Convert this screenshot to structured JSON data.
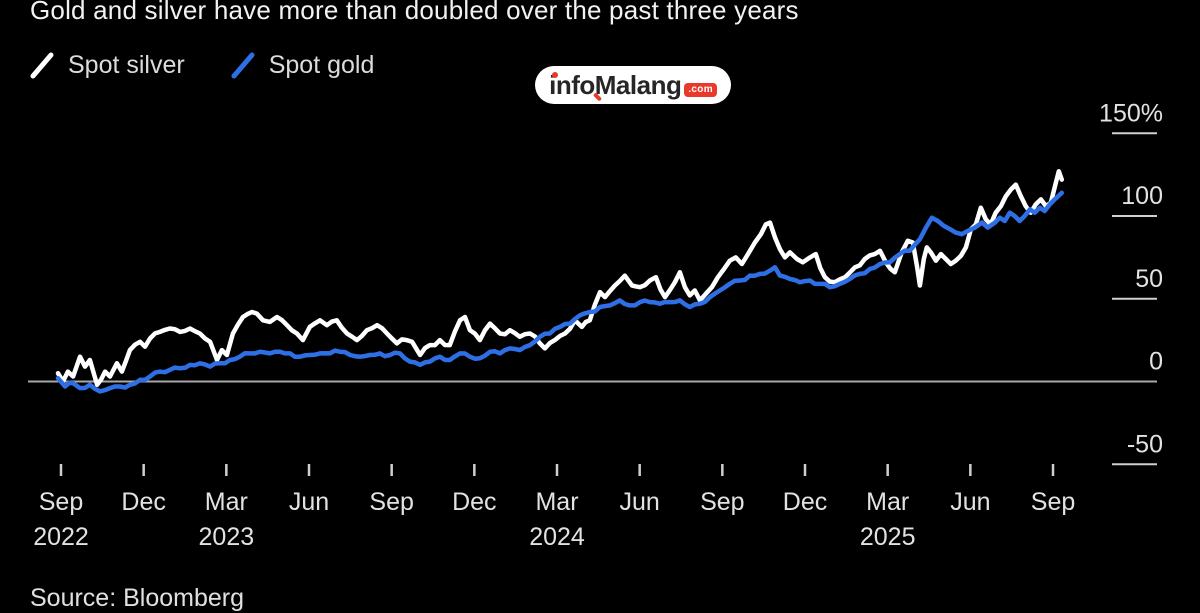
{
  "title": "Gold and silver have more than doubled over the past three years",
  "legend": [
    {
      "label": "Spot silver",
      "color": "#ffffff"
    },
    {
      "label": "Spot gold",
      "color": "#2f6fe6"
    }
  ],
  "watermark": {
    "prefix": "info",
    "suffix": "Malang",
    "tld": ".com"
  },
  "source": "Source: Bloomberg",
  "colors": {
    "background": "#000000",
    "title_text": "#f2f2f2",
    "axis_text": "#e2e2e2",
    "axis_line": "#a8a8a8",
    "tick": "#cfcfcf",
    "silver": "#ffffff",
    "gold": "#2f6fe6",
    "watermark_red": "#e8392a",
    "watermark_text": "#262626"
  },
  "chart_data": {
    "type": "line",
    "unit": "%",
    "title": "Gold and silver have more than doubled over the past three years",
    "x_axis": {
      "tick_labels": [
        "Sep",
        "Dec",
        "Mar",
        "Jun",
        "Sep",
        "Dec",
        "Mar",
        "Jun",
        "Sep",
        "Dec",
        "Mar",
        "Jun",
        "Sep"
      ],
      "year_labels": [
        {
          "tick_index": 0,
          "label": "2022"
        },
        {
          "tick_index": 2,
          "label": "2023"
        },
        {
          "tick_index": 6,
          "label": "2024"
        },
        {
          "tick_index": 10,
          "label": "2025"
        }
      ],
      "months_per_tick": 3,
      "months_total": 36
    },
    "y_axis": {
      "tick_values": [
        150,
        100,
        50,
        0,
        -50
      ],
      "tick_labels": [
        "150%",
        "100",
        "50",
        "0",
        "-50"
      ],
      "zero_baseline": true,
      "position": "right"
    },
    "legend_position": "top-left",
    "grid": false,
    "series": [
      {
        "name": "Spot silver",
        "color": "#ffffff",
        "points": [
          [
            -0.11,
            5
          ],
          [
            0.07,
            0
          ],
          [
            0.25,
            6
          ],
          [
            0.44,
            3
          ],
          [
            0.69,
            15
          ],
          [
            0.87,
            9
          ],
          [
            1.05,
            13
          ],
          [
            1.31,
            -2
          ],
          [
            1.6,
            6
          ],
          [
            1.78,
            3
          ],
          [
            2.03,
            11
          ],
          [
            2.21,
            6
          ],
          [
            2.5,
            19
          ],
          [
            2.87,
            24
          ],
          [
            3.05,
            21
          ],
          [
            3.23,
            26
          ],
          [
            3.59,
            30
          ],
          [
            3.95,
            32
          ],
          [
            4.32,
            30
          ],
          [
            4.68,
            32
          ],
          [
            5.04,
            29
          ],
          [
            5.41,
            24
          ],
          [
            5.66,
            13
          ],
          [
            5.84,
            19
          ],
          [
            6.02,
            16
          ],
          [
            6.24,
            29
          ],
          [
            6.6,
            39
          ],
          [
            6.93,
            42
          ],
          [
            7.11,
            41
          ],
          [
            7.33,
            37
          ],
          [
            7.58,
            36
          ],
          [
            7.84,
            39
          ],
          [
            8.2,
            34
          ],
          [
            8.56,
            29
          ],
          [
            8.78,
            25
          ],
          [
            9.03,
            33
          ],
          [
            9.4,
            37
          ],
          [
            9.65,
            34
          ],
          [
            10.01,
            37
          ],
          [
            10.38,
            29
          ],
          [
            10.74,
            25
          ],
          [
            11.1,
            31
          ],
          [
            11.47,
            34
          ],
          [
            11.83,
            29
          ],
          [
            12.19,
            23
          ],
          [
            12.55,
            25
          ],
          [
            12.74,
            24
          ],
          [
            13.03,
            16
          ],
          [
            13.39,
            22
          ],
          [
            13.75,
            25
          ],
          [
            14.11,
            22
          ],
          [
            14.48,
            37
          ],
          [
            14.66,
            39
          ],
          [
            14.84,
            31
          ],
          [
            15.2,
            25
          ],
          [
            15.57,
            35
          ],
          [
            15.93,
            29
          ],
          [
            16.29,
            31
          ],
          [
            16.65,
            27
          ],
          [
            17.02,
            29
          ],
          [
            17.38,
            23
          ],
          [
            17.56,
            20
          ],
          [
            17.92,
            25
          ],
          [
            18.29,
            29
          ],
          [
            18.65,
            37
          ],
          [
            18.9,
            33
          ],
          [
            19.19,
            37
          ],
          [
            19.56,
            54
          ],
          [
            19.74,
            51
          ],
          [
            20.1,
            58
          ],
          [
            20.46,
            64
          ],
          [
            20.72,
            58
          ],
          [
            21.01,
            57
          ],
          [
            21.37,
            61
          ],
          [
            21.59,
            63
          ],
          [
            21.92,
            51
          ],
          [
            22.28,
            60
          ],
          [
            22.46,
            66
          ],
          [
            22.64,
            57
          ],
          [
            22.82,
            52
          ],
          [
            23.0,
            55
          ],
          [
            23.19,
            49
          ],
          [
            23.4,
            53
          ],
          [
            23.62,
            57
          ],
          [
            23.84,
            63
          ],
          [
            24.06,
            68
          ],
          [
            24.27,
            73
          ],
          [
            24.49,
            75
          ],
          [
            24.71,
            71
          ],
          [
            24.93,
            77
          ],
          [
            25.18,
            84
          ],
          [
            25.4,
            89
          ],
          [
            25.58,
            95
          ],
          [
            25.73,
            96
          ],
          [
            25.91,
            87
          ],
          [
            26.09,
            80
          ],
          [
            26.27,
            75
          ],
          [
            26.45,
            78
          ],
          [
            26.71,
            74
          ],
          [
            26.92,
            72
          ],
          [
            27.18,
            75
          ],
          [
            27.39,
            77
          ],
          [
            27.72,
            63
          ],
          [
            28.08,
            60
          ],
          [
            28.45,
            63
          ],
          [
            28.81,
            69
          ],
          [
            29.17,
            74
          ],
          [
            29.53,
            77
          ],
          [
            29.72,
            79
          ],
          [
            29.93,
            72
          ],
          [
            30.26,
            66
          ],
          [
            30.51,
            78
          ],
          [
            30.73,
            85
          ],
          [
            30.91,
            84
          ],
          [
            31.06,
            70
          ],
          [
            31.17,
            58
          ],
          [
            31.31,
            74
          ],
          [
            31.42,
            81
          ],
          [
            31.57,
            78
          ],
          [
            31.75,
            73
          ],
          [
            31.93,
            77
          ],
          [
            32.11,
            74
          ],
          [
            32.29,
            71
          ],
          [
            32.47,
            73
          ],
          [
            32.66,
            76
          ],
          [
            32.84,
            81
          ],
          [
            33.02,
            92
          ],
          [
            33.2,
            95
          ],
          [
            33.38,
            105
          ],
          [
            33.56,
            98
          ],
          [
            33.74,
            95
          ],
          [
            33.92,
            102
          ],
          [
            34.11,
            106
          ],
          [
            34.29,
            112
          ],
          [
            34.47,
            116
          ],
          [
            34.65,
            119
          ],
          [
            34.83,
            112
          ],
          [
            35.01,
            106
          ],
          [
            35.19,
            102
          ],
          [
            35.37,
            107
          ],
          [
            35.56,
            110
          ],
          [
            35.74,
            106
          ],
          [
            35.92,
            108
          ],
          [
            36.1,
            120
          ],
          [
            36.21,
            127
          ],
          [
            36.32,
            122
          ]
        ]
      },
      {
        "name": "Spot gold",
        "color": "#2f6fe6",
        "points": [
          [
            -0.11,
            2
          ],
          [
            0.15,
            -3
          ],
          [
            0.44,
            -1
          ],
          [
            0.69,
            -4
          ],
          [
            1.05,
            -2
          ],
          [
            1.41,
            -6
          ],
          [
            1.78,
            -4
          ],
          [
            2.14,
            -3
          ],
          [
            2.5,
            -2
          ],
          [
            2.87,
            1
          ],
          [
            3.23,
            3
          ],
          [
            3.59,
            6
          ],
          [
            3.95,
            7
          ],
          [
            4.32,
            8
          ],
          [
            4.68,
            10
          ],
          [
            5.04,
            11
          ],
          [
            5.41,
            9
          ],
          [
            5.77,
            11
          ],
          [
            6.13,
            13
          ],
          [
            6.49,
            15
          ],
          [
            6.86,
            17
          ],
          [
            7.22,
            18
          ],
          [
            7.58,
            17
          ],
          [
            7.95,
            18
          ],
          [
            8.31,
            17
          ],
          [
            8.67,
            15
          ],
          [
            9.03,
            16
          ],
          [
            9.4,
            17
          ],
          [
            9.76,
            17
          ],
          [
            10.12,
            18
          ],
          [
            10.49,
            16
          ],
          [
            10.85,
            15
          ],
          [
            11.21,
            16
          ],
          [
            11.57,
            17
          ],
          [
            11.94,
            16
          ],
          [
            12.3,
            17
          ],
          [
            12.66,
            12
          ],
          [
            13.03,
            10
          ],
          [
            13.39,
            12
          ],
          [
            13.75,
            15
          ],
          [
            14.11,
            13
          ],
          [
            14.48,
            17
          ],
          [
            14.84,
            15
          ],
          [
            15.2,
            14
          ],
          [
            15.57,
            18
          ],
          [
            15.93,
            17
          ],
          [
            16.29,
            20
          ],
          [
            16.65,
            19
          ],
          [
            17.02,
            22
          ],
          [
            17.38,
            27
          ],
          [
            17.74,
            29
          ],
          [
            18.11,
            33
          ],
          [
            18.47,
            35
          ],
          [
            18.83,
            40
          ],
          [
            19.19,
            42
          ],
          [
            19.56,
            45
          ],
          [
            19.92,
            46
          ],
          [
            20.28,
            49
          ],
          [
            20.64,
            46
          ],
          [
            21.01,
            48
          ],
          [
            21.37,
            48
          ],
          [
            21.73,
            47
          ],
          [
            22.1,
            48
          ],
          [
            22.46,
            49
          ],
          [
            22.82,
            45
          ],
          [
            23.19,
            47
          ],
          [
            23.55,
            51
          ],
          [
            23.91,
            55
          ],
          [
            24.27,
            59
          ],
          [
            24.64,
            61
          ],
          [
            25.0,
            64
          ],
          [
            25.36,
            65
          ],
          [
            25.73,
            67
          ],
          [
            25.91,
            69
          ],
          [
            26.09,
            64
          ],
          [
            26.45,
            62
          ],
          [
            26.81,
            60
          ],
          [
            27.18,
            61
          ],
          [
            27.54,
            59
          ],
          [
            27.9,
            57
          ],
          [
            28.26,
            59
          ],
          [
            28.63,
            62
          ],
          [
            28.99,
            65
          ],
          [
            29.35,
            68
          ],
          [
            29.72,
            71
          ],
          [
            30.08,
            72
          ],
          [
            30.44,
            77
          ],
          [
            30.8,
            79
          ],
          [
            31.17,
            86
          ],
          [
            31.39,
            93
          ],
          [
            31.6,
            99
          ],
          [
            31.82,
            97
          ],
          [
            32.04,
            94
          ],
          [
            32.26,
            92
          ],
          [
            32.47,
            90
          ],
          [
            32.69,
            89
          ],
          [
            32.91,
            91
          ],
          [
            33.16,
            93
          ],
          [
            33.42,
            96
          ],
          [
            33.63,
            93
          ],
          [
            33.89,
            96
          ],
          [
            34.07,
            99
          ],
          [
            34.25,
            97
          ],
          [
            34.43,
            102
          ],
          [
            34.61,
            100
          ],
          [
            34.79,
            97
          ],
          [
            34.97,
            100
          ],
          [
            35.16,
            104
          ],
          [
            35.34,
            102
          ],
          [
            35.52,
            105
          ],
          [
            35.7,
            103
          ],
          [
            35.88,
            107
          ],
          [
            36.06,
            110
          ],
          [
            36.32,
            114
          ]
        ]
      }
    ]
  }
}
